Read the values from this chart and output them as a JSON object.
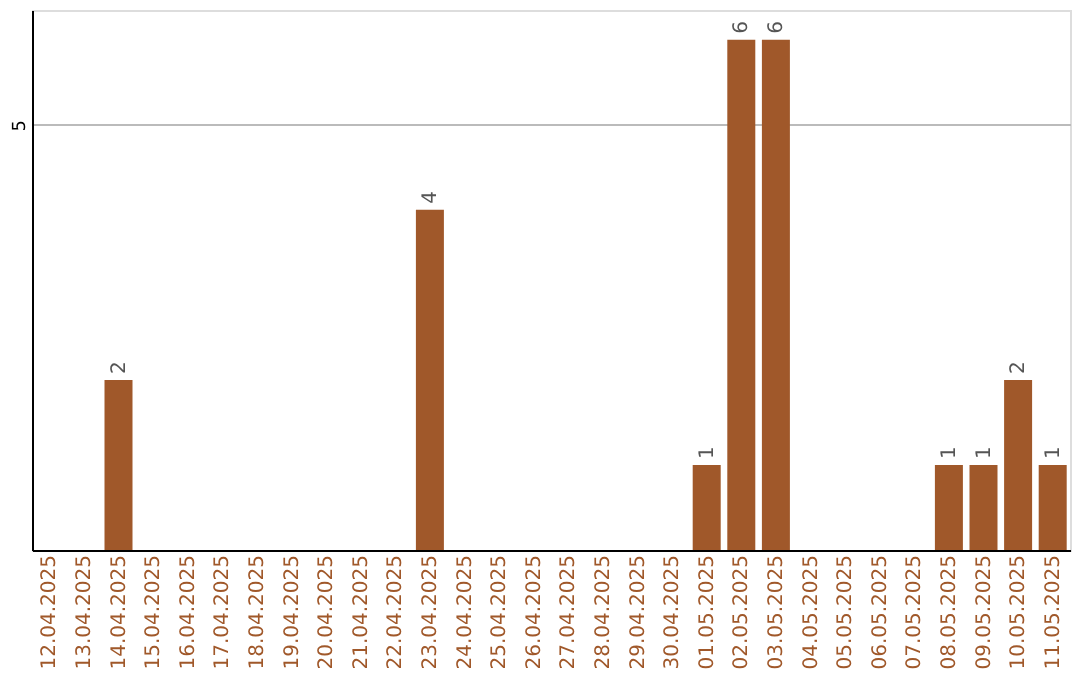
{
  "chart_data": {
    "type": "bar",
    "categories": [
      "12.04.2025",
      "13.04.2025",
      "14.04.2025",
      "15.04.2025",
      "16.04.2025",
      "17.04.2025",
      "18.04.2025",
      "19.04.2025",
      "20.04.2025",
      "21.04.2025",
      "22.04.2025",
      "23.04.2025",
      "24.04.2025",
      "25.04.2025",
      "26.04.2025",
      "27.04.2025",
      "28.04.2025",
      "29.04.2025",
      "30.04.2025",
      "01.05.2025",
      "02.05.2025",
      "03.05.2025",
      "04.05.2025",
      "05.05.2025",
      "06.05.2025",
      "07.05.2025",
      "08.05.2025",
      "09.05.2025",
      "10.05.2025",
      "11.05.2025"
    ],
    "values": [
      0,
      0,
      2,
      0,
      0,
      0,
      0,
      0,
      0,
      0,
      0,
      4,
      0,
      0,
      0,
      0,
      0,
      0,
      0,
      1,
      6,
      6,
      0,
      0,
      0,
      0,
      1,
      1,
      2,
      1
    ],
    "value_labels": [
      null,
      null,
      "2",
      null,
      null,
      null,
      null,
      null,
      null,
      null,
      null,
      "4",
      null,
      null,
      null,
      null,
      null,
      null,
      null,
      "1",
      "6",
      "6",
      null,
      null,
      null,
      null,
      "1",
      "1",
      "2",
      "1"
    ],
    "color": "#a0582a",
    "ylim": [
      0,
      6.35
    ],
    "yticks": [
      5
    ],
    "grid": "y"
  }
}
